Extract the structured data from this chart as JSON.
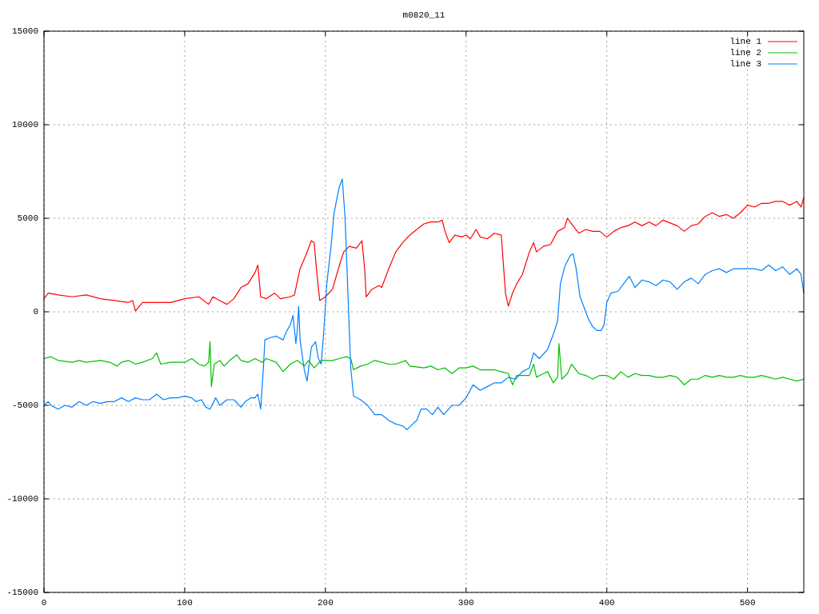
{
  "chart_data": {
    "type": "line",
    "title": "m0820_11",
    "xlim": [
      0,
      540
    ],
    "xticks": [
      0,
      100,
      200,
      300,
      400,
      500
    ],
    "ylim": [
      -15000,
      15000
    ],
    "yticks": [
      -15000,
      -10000,
      -5000,
      0,
      5000,
      10000,
      15000
    ],
    "grid": true,
    "legend": "top right",
    "marker": "none",
    "line_style": "solid",
    "series": [
      {
        "name": "line 1",
        "color": "#ff0000",
        "x": [
          0,
          3,
          10,
          20,
          30,
          40,
          50,
          60,
          63,
          65,
          70,
          80,
          90,
          100,
          110,
          117,
          120,
          125,
          130,
          135,
          140,
          145,
          150,
          152,
          154,
          158,
          164,
          168,
          175,
          178,
          182,
          186,
          190,
          192,
          194,
          196,
          200,
          205,
          210,
          213,
          217,
          222,
          226,
          228,
          229,
          233,
          238,
          240,
          245,
          250,
          255,
          260,
          265,
          270,
          275,
          280,
          283,
          285,
          288,
          292,
          297,
          300,
          303,
          307,
          310,
          315,
          320,
          325,
          328,
          330,
          333,
          336,
          340,
          345,
          348,
          350,
          355,
          360,
          365,
          370,
          372,
          375,
          380,
          385,
          390,
          395,
          400,
          405,
          410,
          415,
          420,
          425,
          430,
          435,
          440,
          450,
          455,
          460,
          465,
          470,
          475,
          480,
          485,
          490,
          495,
          500,
          505,
          510,
          515,
          520,
          525,
          530,
          535,
          538,
          540
        ],
        "values": [
          700,
          1000,
          900,
          800,
          900,
          700,
          600,
          500,
          600,
          50,
          500,
          500,
          500,
          700,
          800,
          400,
          800,
          600,
          400,
          700,
          1300,
          1500,
          2100,
          2500,
          800,
          700,
          1000,
          700,
          800,
          900,
          2300,
          3000,
          3800,
          3700,
          2000,
          600,
          800,
          1200,
          2500,
          3200,
          3500,
          3400,
          3800,
          2200,
          800,
          1200,
          1400,
          1300,
          2300,
          3200,
          3700,
          4100,
          4400,
          4700,
          4800,
          4800,
          4900,
          4300,
          3700,
          4100,
          4000,
          4100,
          3900,
          4400,
          4000,
          3900,
          4200,
          4100,
          1000,
          300,
          1000,
          1500,
          2000,
          3200,
          3700,
          3200,
          3500,
          3600,
          4300,
          4500,
          5000,
          4700,
          4200,
          4400,
          4300,
          4300,
          4000,
          4300,
          4500,
          4600,
          4800,
          4600,
          4800,
          4600,
          4900,
          4600,
          4300,
          4600,
          4700,
          5100,
          5300,
          5100,
          5200,
          5000,
          5300,
          5700,
          5600,
          5800,
          5800,
          5900,
          5900,
          5700,
          5900,
          5600,
          6100
        ]
      },
      {
        "name": "line 2",
        "color": "#00c000",
        "x": [
          0,
          5,
          10,
          20,
          25,
          30,
          40,
          47,
          52,
          55,
          60,
          65,
          70,
          77,
          80,
          83,
          90,
          100,
          105,
          110,
          114,
          117,
          118,
          119,
          121,
          125,
          128,
          132,
          137,
          140,
          145,
          150,
          155,
          158,
          165,
          170,
          175,
          180,
          185,
          188,
          192,
          197,
          205,
          210,
          215,
          218,
          220,
          225,
          230,
          235,
          240,
          245,
          250,
          257,
          260,
          270,
          275,
          280,
          285,
          290,
          295,
          300,
          305,
          310,
          315,
          320,
          325,
          330,
          333,
          336,
          340,
          345,
          348,
          350,
          355,
          358,
          362,
          365,
          366,
          368,
          372,
          375,
          380,
          385,
          390,
          395,
          400,
          405,
          410,
          415,
          420,
          425,
          430,
          435,
          440,
          445,
          450,
          455,
          460,
          465,
          470,
          475,
          480,
          485,
          490,
          495,
          500,
          505,
          510,
          515,
          520,
          525,
          530,
          535,
          540
        ],
        "values": [
          -2500,
          -2400,
          -2600,
          -2700,
          -2600,
          -2700,
          -2600,
          -2700,
          -2900,
          -2700,
          -2600,
          -2800,
          -2700,
          -2500,
          -2200,
          -2800,
          -2700,
          -2700,
          -2500,
          -2800,
          -2900,
          -2700,
          -1600,
          -4000,
          -2800,
          -2600,
          -2900,
          -2600,
          -2300,
          -2600,
          -2700,
          -2500,
          -2700,
          -2500,
          -2700,
          -3200,
          -2800,
          -2600,
          -2900,
          -2600,
          -3000,
          -2600,
          -2600,
          -2500,
          -2400,
          -2500,
          -3100,
          -2900,
          -2800,
          -2600,
          -2700,
          -2800,
          -2800,
          -2600,
          -2900,
          -3000,
          -2900,
          -3100,
          -3000,
          -3300,
          -3000,
          -3000,
          -2900,
          -3100,
          -3100,
          -3100,
          -3200,
          -3300,
          -3900,
          -3400,
          -3400,
          -3400,
          -2800,
          -3500,
          -3300,
          -3200,
          -3800,
          -3500,
          -1700,
          -3600,
          -3300,
          -2800,
          -3300,
          -3400,
          -3600,
          -3400,
          -3400,
          -3600,
          -3200,
          -3500,
          -3300,
          -3400,
          -3400,
          -3500,
          -3500,
          -3400,
          -3500,
          -3900,
          -3600,
          -3600,
          -3400,
          -3500,
          -3400,
          -3500,
          -3500,
          -3400,
          -3500,
          -3500,
          -3400,
          -3500,
          -3600,
          -3500,
          -3600,
          -3700,
          -3600
        ]
      },
      {
        "name": "line 3",
        "color": "#0080ff",
        "x": [
          0,
          3,
          5,
          10,
          15,
          20,
          25,
          30,
          35,
          40,
          45,
          50,
          55,
          60,
          65,
          70,
          75,
          80,
          85,
          90,
          95,
          100,
          105,
          108,
          112,
          115,
          118,
          122,
          125,
          130,
          135,
          140,
          143,
          147,
          150,
          152,
          154,
          156,
          157,
          160,
          165,
          170,
          172,
          175,
          177,
          179,
          180,
          181,
          182,
          185,
          187,
          190,
          193,
          195,
          197,
          199,
          201,
          204,
          206,
          208,
          210,
          212,
          214,
          216,
          218,
          220,
          225,
          230,
          235,
          240,
          245,
          250,
          255,
          258,
          262,
          265,
          268,
          272,
          276,
          280,
          284,
          290,
          295,
          300,
          305,
          310,
          315,
          320,
          325,
          330,
          335,
          340,
          345,
          348,
          352,
          358,
          362,
          365,
          367,
          370,
          374,
          376,
          378,
          381,
          384,
          387,
          390,
          393,
          396,
          398,
          400,
          403,
          408,
          412,
          416,
          420,
          425,
          430,
          435,
          440,
          445,
          450,
          455,
          460,
          465,
          470,
          475,
          480,
          485,
          490,
          495,
          500,
          505,
          510,
          515,
          520,
          525,
          530,
          535,
          538,
          540
        ],
        "values": [
          -5000,
          -4800,
          -5000,
          -5200,
          -5000,
          -5100,
          -4800,
          -5000,
          -4800,
          -4900,
          -4800,
          -4800,
          -4600,
          -4800,
          -4600,
          -4700,
          -4700,
          -4400,
          -4700,
          -4600,
          -4600,
          -4500,
          -4600,
          -4800,
          -4700,
          -5100,
          -5200,
          -4600,
          -5000,
          -4700,
          -4700,
          -5100,
          -4800,
          -4600,
          -4600,
          -4400,
          -5200,
          -2900,
          -1500,
          -1400,
          -1300,
          -1500,
          -1100,
          -700,
          -200,
          -1700,
          -1000,
          300,
          -1500,
          -3100,
          -3700,
          -1900,
          -1600,
          -2500,
          -2800,
          -900,
          1500,
          3500,
          5200,
          6000,
          6700,
          7100,
          5000,
          1000,
          -3000,
          -4500,
          -4700,
          -5000,
          -5500,
          -5500,
          -5800,
          -6000,
          -6100,
          -6300,
          -6000,
          -5800,
          -5200,
          -5200,
          -5500,
          -5100,
          -5500,
          -5000,
          -5000,
          -4600,
          -3900,
          -4200,
          -4000,
          -3800,
          -3800,
          -3500,
          -3600,
          -3200,
          -3000,
          -2200,
          -2500,
          -2000,
          -1200,
          -500,
          1500,
          2400,
          3000,
          3100,
          2400,
          800,
          200,
          -400,
          -800,
          -1000,
          -1000,
          -700,
          500,
          1000,
          1100,
          1500,
          1900,
          1300,
          1700,
          1600,
          1400,
          1700,
          1600,
          1200,
          1600,
          1800,
          1500,
          2000,
          2200,
          2300,
          2100,
          2300,
          2300,
          2300,
          2300,
          2200,
          2500,
          2200,
          2400,
          2000,
          2300,
          2000,
          1000
        ]
      }
    ]
  }
}
